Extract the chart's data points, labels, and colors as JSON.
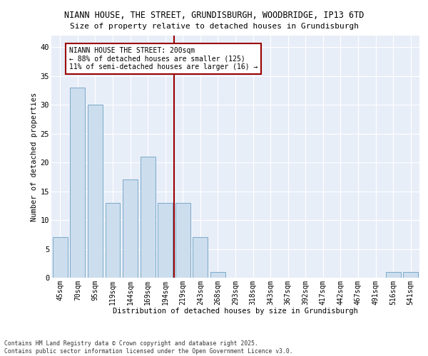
{
  "title1": "NIANN HOUSE, THE STREET, GRUNDISBURGH, WOODBRIDGE, IP13 6TD",
  "title2": "Size of property relative to detached houses in Grundisburgh",
  "xlabel": "Distribution of detached houses by size in Grundisburgh",
  "ylabel": "Number of detached properties",
  "categories": [
    "45sqm",
    "70sqm",
    "95sqm",
    "119sqm",
    "144sqm",
    "169sqm",
    "194sqm",
    "219sqm",
    "243sqm",
    "268sqm",
    "293sqm",
    "318sqm",
    "343sqm",
    "367sqm",
    "392sqm",
    "417sqm",
    "442sqm",
    "467sqm",
    "491sqm",
    "516sqm",
    "541sqm"
  ],
  "values": [
    7,
    33,
    30,
    13,
    17,
    21,
    13,
    13,
    7,
    1,
    0,
    0,
    0,
    0,
    0,
    0,
    0,
    0,
    0,
    1,
    1
  ],
  "bar_color": "#ccdded",
  "bar_edge_color": "#7aaaca",
  "vline_x": 6.5,
  "vline_color": "#990000",
  "annotation_title": "NIANN HOUSE THE STREET: 200sqm",
  "annotation_line1": "← 88% of detached houses are smaller (125)",
  "annotation_line2": "11% of semi-detached houses are larger (16) →",
  "annotation_box_color": "#990000",
  "annotation_fill": "#ffffff",
  "ylim": [
    0,
    42
  ],
  "yticks": [
    0,
    5,
    10,
    15,
    20,
    25,
    30,
    35,
    40
  ],
  "background_color": "#e8eef8",
  "footer1": "Contains HM Land Registry data © Crown copyright and database right 2025.",
  "footer2": "Contains public sector information licensed under the Open Government Licence v3.0."
}
